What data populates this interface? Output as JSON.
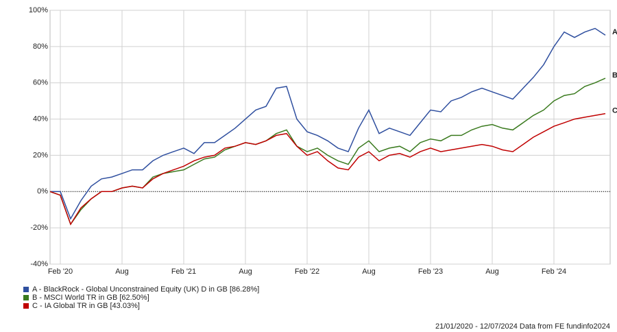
{
  "chart_data": {
    "type": "line",
    "x": [
      "2020-01",
      "2020-02",
      "2020-03",
      "2020-04",
      "2020-05",
      "2020-06",
      "2020-07",
      "2020-08",
      "2020-09",
      "2020-10",
      "2020-11",
      "2020-12",
      "2021-01",
      "2021-02",
      "2021-03",
      "2021-04",
      "2021-05",
      "2021-06",
      "2021-07",
      "2021-08",
      "2021-09",
      "2021-10",
      "2021-11",
      "2021-12",
      "2022-01",
      "2022-02",
      "2022-03",
      "2022-04",
      "2022-05",
      "2022-06",
      "2022-07",
      "2022-08",
      "2022-09",
      "2022-10",
      "2022-11",
      "2022-12",
      "2023-01",
      "2023-02",
      "2023-03",
      "2023-04",
      "2023-05",
      "2023-06",
      "2023-07",
      "2023-08",
      "2023-09",
      "2023-10",
      "2023-11",
      "2023-12",
      "2024-01",
      "2024-02",
      "2024-03",
      "2024-04",
      "2024-05",
      "2024-06",
      "2024-07"
    ],
    "series": [
      {
        "name": "A - BlackRock - Global Unconstrained Equity (UK) D in GB [86.28%]",
        "end_label": "A",
        "color": "#2f4f9f",
        "values": [
          0,
          0,
          -15,
          -5,
          3,
          7,
          8,
          10,
          12,
          12,
          17,
          20,
          22,
          24,
          21,
          27,
          27,
          31,
          35,
          40,
          45,
          47,
          57,
          58,
          40,
          33,
          31,
          28,
          24,
          22,
          35,
          45,
          32,
          35,
          33,
          31,
          38,
          45,
          44,
          50,
          52,
          55,
          57,
          55,
          53,
          51,
          57,
          63,
          70,
          80,
          88,
          85,
          88,
          90,
          86.28
        ]
      },
      {
        "name": "B - MSCI World TR in GB [62.50%]",
        "end_label": "B",
        "color": "#3a7a1e",
        "values": [
          0,
          -2,
          -18,
          -10,
          -4,
          0,
          0,
          2,
          3,
          2,
          8,
          10,
          11,
          12,
          15,
          18,
          19,
          23,
          25,
          27,
          26,
          28,
          32,
          34,
          25,
          22,
          24,
          20,
          17,
          15,
          24,
          28,
          22,
          24,
          25,
          22,
          27,
          29,
          28,
          31,
          31,
          34,
          36,
          37,
          35,
          34,
          38,
          42,
          45,
          50,
          53,
          54,
          58,
          60,
          62.5
        ]
      },
      {
        "name": "C - IA Global TR in GB [43.03%]",
        "end_label": "C",
        "color": "#c00000",
        "values": [
          0,
          -2,
          -18,
          -9,
          -4,
          0,
          0,
          2,
          3,
          2,
          7,
          10,
          12,
          14,
          17,
          19,
          20,
          24,
          25,
          27,
          26,
          28,
          31,
          32,
          25,
          20,
          22,
          17,
          13,
          12,
          19,
          22,
          17,
          20,
          21,
          19,
          22,
          24,
          22,
          23,
          24,
          25,
          26,
          25,
          23,
          22,
          26,
          30,
          33,
          36,
          38,
          40,
          41,
          42,
          43.03
        ]
      }
    ],
    "xlim": [
      "2020-01",
      "2024-07"
    ],
    "xticks": [
      {
        "value": "2020-02",
        "label": "Feb '20"
      },
      {
        "value": "2020-08",
        "label": "Aug"
      },
      {
        "value": "2021-02",
        "label": "Feb '21"
      },
      {
        "value": "2021-08",
        "label": "Aug"
      },
      {
        "value": "2022-02",
        "label": "Feb '22"
      },
      {
        "value": "2022-08",
        "label": "Aug"
      },
      {
        "value": "2023-02",
        "label": "Feb '23"
      },
      {
        "value": "2023-08",
        "label": "Aug"
      },
      {
        "value": "2024-02",
        "label": "Feb '24"
      }
    ],
    "ylim": [
      -40,
      100
    ],
    "yticks": [
      {
        "value": -40,
        "label": "-40%"
      },
      {
        "value": -20,
        "label": "-20%"
      },
      {
        "value": 0,
        "label": "0%"
      },
      {
        "value": 20,
        "label": "20%"
      },
      {
        "value": 40,
        "label": "40%"
      },
      {
        "value": 60,
        "label": "60%"
      },
      {
        "value": 80,
        "label": "80%"
      },
      {
        "value": 100,
        "label": "100%"
      }
    ],
    "grid": true,
    "footnote": "21/01/2020 - 12/07/2024 Data from FE fundinfo2024"
  }
}
